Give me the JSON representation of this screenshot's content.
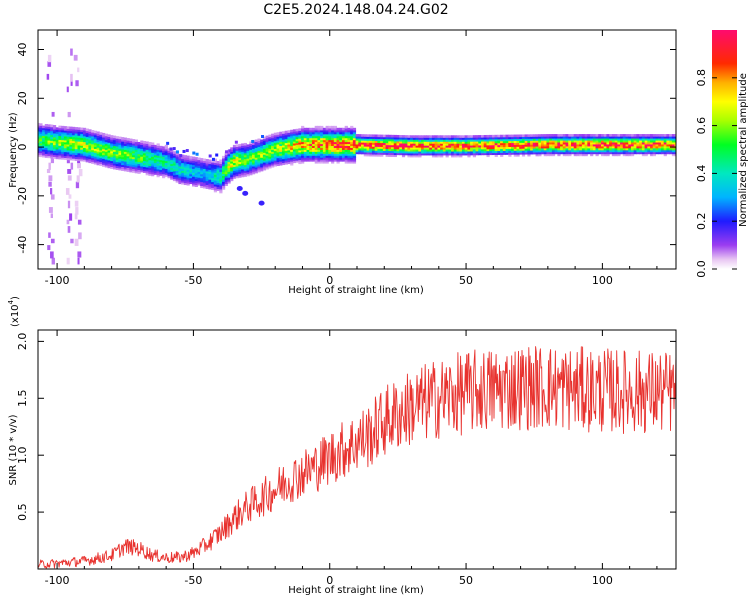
{
  "title": "C2E5.2024.148.04.24.G02",
  "chart_data": [
    {
      "type": "heatmap",
      "xlabel": "Height of straight line (km)",
      "ylabel": "Frequency (Hz)",
      "xlim": [
        -107,
        127
      ],
      "ylim": [
        -50,
        48
      ],
      "xticks": [
        -100,
        -50,
        0,
        50,
        100
      ],
      "yticks": [
        -40,
        -20,
        0,
        20,
        40
      ],
      "colorbar": {
        "label": "Normalized spectral amplitude",
        "range": [
          0,
          1
        ],
        "ticks": [
          "0.0",
          "0.2",
          "0.4",
          "0.6",
          "0.8"
        ]
      },
      "ridge": {
        "x": [
          -107,
          -100,
          -90,
          -80,
          -70,
          -60,
          -55,
          -50,
          -45,
          -40,
          -38,
          -35,
          -30,
          -25,
          -20,
          -15,
          -10,
          0,
          10,
          30,
          50,
          80,
          100,
          127
        ],
        "y": [
          3,
          2,
          1,
          -2,
          -4,
          -6,
          -9,
          -10,
          -11,
          -12,
          -9,
          -6,
          -5,
          -3,
          -1,
          0,
          1,
          1,
          1,
          0.5,
          0.5,
          1,
          1,
          1
        ],
        "amplitude": [
          0.55,
          0.6,
          0.65,
          0.6,
          0.55,
          0.45,
          0.4,
          0.35,
          0.35,
          0.45,
          0.6,
          0.7,
          0.55,
          0.6,
          0.65,
          0.7,
          0.8,
          0.85,
          0.9,
          0.95,
          0.9,
          0.92,
          0.95,
          0.9
        ]
      },
      "scatter_points": [
        {
          "x": -33,
          "y": -17
        },
        {
          "x": -31,
          "y": -19
        },
        {
          "x": -25,
          "y": -23
        }
      ]
    },
    {
      "type": "line",
      "xlabel": "Height of straight line (km)",
      "ylabel": "SNR (10 * v/v)",
      "multiplier": "(x10",
      "multiplier_exp": "4",
      "multiplier_close": ")",
      "xlim": [
        -107,
        127
      ],
      "ylim": [
        0,
        2.1
      ],
      "xticks": [
        -100,
        -50,
        0,
        50,
        100
      ],
      "yticks": [
        0.5,
        1.0,
        1.5,
        2.0
      ],
      "ytick_labels": [
        "0.5",
        "1.0",
        "1.5",
        "2.0"
      ],
      "color": "#e8322e",
      "series_trend": {
        "x": [
          -107,
          -100,
          -90,
          -80,
          -75,
          -70,
          -65,
          -60,
          -55,
          -50,
          -45,
          -40,
          -35,
          -30,
          -25,
          -20,
          -15,
          -10,
          -5,
          0,
          5,
          10,
          15,
          20,
          30,
          40,
          50,
          60,
          70,
          80,
          90,
          100,
          110,
          127
        ],
        "y": [
          0.04,
          0.05,
          0.07,
          0.12,
          0.2,
          0.18,
          0.12,
          0.1,
          0.1,
          0.14,
          0.22,
          0.32,
          0.45,
          0.55,
          0.62,
          0.7,
          0.78,
          0.84,
          0.9,
          0.98,
          1.05,
          1.12,
          1.18,
          1.3,
          1.42,
          1.5,
          1.55,
          1.58,
          1.6,
          1.6,
          1.58,
          1.57,
          1.56,
          1.55
        ]
      }
    }
  ]
}
